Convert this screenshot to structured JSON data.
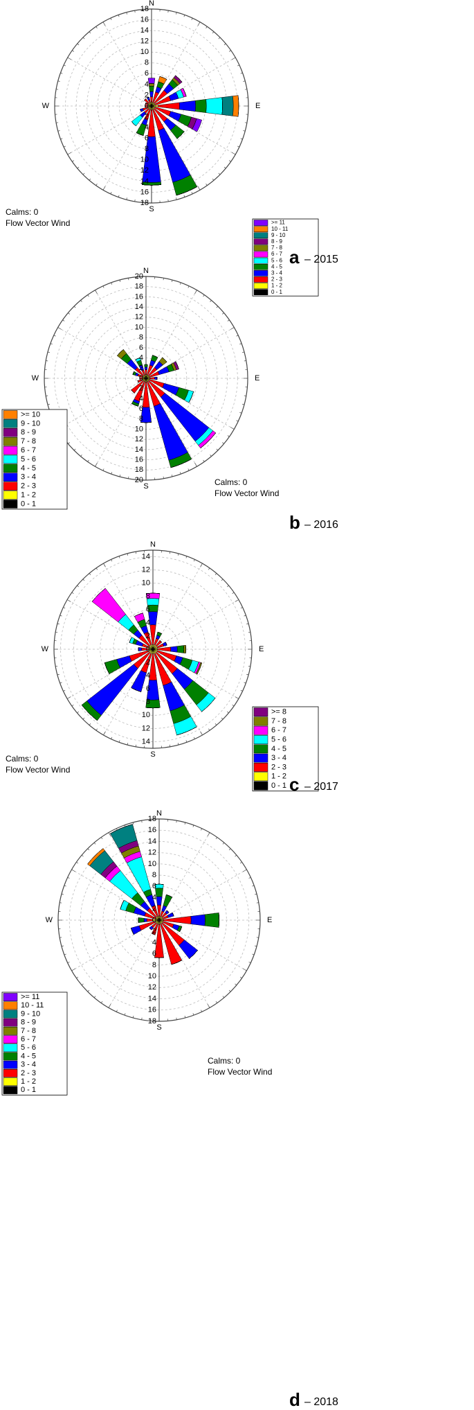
{
  "chart_data": [
    {
      "type": "windrose",
      "panel": "a",
      "subtitle": "– 2015",
      "annotations": [
        "Calms: 0",
        "Flow Vector Wind"
      ],
      "direction_labels": [
        "N",
        "E",
        "S",
        "W"
      ],
      "ylim": [
        0,
        18
      ],
      "yticks": [
        0,
        2,
        4,
        6,
        8,
        10,
        12,
        14,
        16,
        18
      ],
      "grid": true,
      "series": [
        {
          "name": "0 - 1",
          "color": "#000000",
          "values": [
            0.2,
            0.2,
            0.2,
            0.2,
            0.2,
            0.2,
            0.2,
            0.2,
            0.2,
            0.2,
            0.2,
            0.2,
            0.2,
            0.2,
            0.2,
            0.2
          ]
        },
        {
          "name": "1 - 2",
          "color": "#ffff00",
          "values": [
            0.5,
            0.5,
            0.5,
            0.5,
            1,
            0.5,
            0.5,
            0.5,
            0.5,
            0.5,
            0.5,
            0.5,
            0.5,
            0.5,
            0.5,
            0.5
          ]
        },
        {
          "name": "2 - 3",
          "color": "#ff0000",
          "values": [
            1,
            2,
            3,
            3,
            4,
            3,
            3,
            4,
            5,
            2,
            1,
            1,
            0.5,
            0.5,
            1,
            0.5
          ]
        },
        {
          "name": "3 - 4",
          "color": "#0000ff",
          "values": [
            1,
            1,
            1.5,
            1.5,
            3,
            2,
            2,
            10,
            8.5,
            1,
            1,
            0.5,
            0,
            0,
            0,
            0.5
          ]
        },
        {
          "name": "4 - 5",
          "color": "#008000",
          "values": [
            1,
            1,
            1,
            0,
            2,
            2,
            2,
            2.5,
            0.5,
            2,
            0,
            0,
            0,
            0,
            0,
            0
          ]
        },
        {
          "name": "5 - 6",
          "color": "#00ffff",
          "values": [
            0,
            0,
            0,
            1,
            3,
            0,
            0,
            0,
            0,
            0,
            2,
            0,
            0,
            0,
            0,
            0
          ]
        },
        {
          "name": "6 - 7",
          "color": "#ff00ff",
          "values": [
            0,
            0,
            0,
            0.5,
            0,
            0,
            0,
            0,
            0,
            0,
            0,
            0,
            0,
            0,
            0,
            0
          ]
        },
        {
          "name": "7 - 8",
          "color": "#808000",
          "values": [
            0.5,
            0,
            0.5,
            0,
            0,
            0,
            0,
            0,
            0,
            0,
            0,
            0,
            0,
            0,
            0,
            0
          ]
        },
        {
          "name": "8 - 9",
          "color": "#800080",
          "values": [
            0,
            0,
            0.5,
            0,
            0,
            1,
            0,
            0,
            0,
            0,
            0,
            0,
            0,
            0,
            0,
            0
          ]
        },
        {
          "name": "9 - 10",
          "color": "#008080",
          "values": [
            0,
            0,
            0,
            0,
            2,
            0,
            0,
            0,
            0,
            0,
            0,
            0,
            0,
            0,
            0,
            0
          ]
        },
        {
          "name": "10 - 11",
          "color": "#ff8000",
          "values": [
            0,
            1,
            0,
            0,
            1,
            0,
            0,
            0,
            0,
            0,
            0,
            0,
            0,
            0,
            0,
            0
          ]
        },
        {
          "name": ">= 11",
          "color": "#8000ff",
          "values": [
            1,
            0,
            0,
            0,
            0,
            1,
            0,
            0,
            0,
            0,
            0,
            0,
            0,
            0,
            0,
            0
          ]
        }
      ]
    },
    {
      "type": "windrose",
      "panel": "b",
      "subtitle": "– 2016",
      "annotations": [
        "Calms: 0",
        "Flow Vector Wind"
      ],
      "direction_labels": [
        "N",
        "E",
        "S",
        "W"
      ],
      "ylim": [
        0,
        20
      ],
      "yticks": [
        0,
        2,
        4,
        6,
        8,
        10,
        12,
        14,
        16,
        18,
        20
      ],
      "grid": true,
      "series": [
        {
          "name": "0 - 1",
          "color": "#000000",
          "values": [
            0.2,
            0.2,
            0.2,
            0.2,
            0.2,
            0.2,
            0.2,
            0.2,
            0.2,
            0.2,
            0.2,
            0.2,
            0.2,
            0.2,
            0.2,
            0.2
          ]
        },
        {
          "name": "1 - 2",
          "color": "#ffff00",
          "values": [
            0.5,
            0.5,
            0.5,
            0.5,
            0.5,
            0.5,
            0.5,
            0.5,
            0.5,
            0.5,
            0.5,
            0.5,
            0.5,
            0.5,
            0.5,
            0.5
          ]
        },
        {
          "name": "2 - 3",
          "color": "#ff0000",
          "values": [
            1,
            2,
            2,
            2,
            1,
            3,
            4,
            5,
            5,
            4,
            3,
            1,
            0.5,
            1,
            2,
            1
          ]
        },
        {
          "name": "3 - 4",
          "color": "#0000ff",
          "values": [
            0.5,
            1,
            1.5,
            2,
            0.5,
            3,
            11,
            11,
            3,
            0.5,
            0,
            0,
            0,
            0.5,
            2,
            1
          ]
        },
        {
          "name": "4 - 5",
          "color": "#008000",
          "values": [
            0.5,
            1,
            0,
            1,
            0,
            2,
            0,
            1.5,
            0,
            0.5,
            0,
            0,
            0,
            0.5,
            1.5,
            1
          ]
        },
        {
          "name": "5 - 6",
          "color": "#00ffff",
          "values": [
            0,
            0,
            0,
            0,
            0,
            1,
            1,
            0,
            0,
            0,
            0,
            0,
            0,
            0,
            0,
            0.5
          ]
        },
        {
          "name": "6 - 7",
          "color": "#ff00ff",
          "values": [
            0,
            0,
            0,
            0,
            0,
            0,
            0.7,
            0,
            0,
            0,
            0,
            0,
            0,
            0,
            0,
            0
          ]
        },
        {
          "name": "7 - 8",
          "color": "#808000",
          "values": [
            0,
            0,
            1,
            0.5,
            0,
            0,
            0,
            0,
            0,
            0,
            0,
            0,
            0,
            0,
            1,
            0
          ]
        },
        {
          "name": "8 - 9",
          "color": "#800080",
          "values": [
            0,
            0,
            0,
            0.5,
            0,
            0,
            0,
            0,
            0,
            0,
            0,
            0,
            0,
            0,
            0,
            0
          ]
        },
        {
          "name": "9 - 10",
          "color": "#008080",
          "values": [
            0,
            0,
            0,
            0,
            0,
            0,
            0,
            0,
            0,
            0,
            0,
            0,
            0,
            0,
            0,
            0
          ]
        },
        {
          "name": ">= 10",
          "color": "#ff8000",
          "values": [
            0,
            0,
            0,
            0,
            0,
            0,
            0,
            0,
            0,
            0,
            0,
            0,
            0,
            0,
            0,
            0
          ]
        }
      ]
    },
    {
      "type": "windrose",
      "panel": "c",
      "subtitle": "– 2017",
      "annotations": [
        "Calms: 0",
        "Flow Vector Wind"
      ],
      "direction_labels": [
        "N",
        "E",
        "S",
        "W"
      ],
      "ylim": [
        0,
        15
      ],
      "yticks": [
        0,
        2,
        4,
        6,
        8,
        10,
        12,
        14
      ],
      "grid": true,
      "series": [
        {
          "name": "0 - 1",
          "color": "#000000",
          "values": [
            0.2,
            0.2,
            0.2,
            0.2,
            0.2,
            0.2,
            0.2,
            0.2,
            0.2,
            0.2,
            0.2,
            0.2,
            0.2,
            0.2,
            0.2,
            0.2
          ]
        },
        {
          "name": "1 - 2",
          "color": "#ffff00",
          "values": [
            0.5,
            0.5,
            0.5,
            0.5,
            0.5,
            0.5,
            0.5,
            0.5,
            0.5,
            0.5,
            0.5,
            0.5,
            0.5,
            0.5,
            0.5,
            0.5
          ]
        },
        {
          "name": "2 - 3",
          "color": "#ff0000",
          "values": [
            3,
            1,
            1,
            1,
            2,
            3,
            4,
            5,
            4,
            3,
            3,
            3,
            1,
            1,
            2,
            2
          ]
        },
        {
          "name": "3 - 4",
          "color": "#0000ff",
          "values": [
            2,
            0.5,
            0,
            0.5,
            1,
            1,
            3,
            4,
            3,
            3,
            9,
            2,
            0.5,
            1,
            1,
            1
          ]
        },
        {
          "name": "4 - 5",
          "color": "#008000",
          "values": [
            1,
            0.5,
            0,
            0,
            1,
            1.5,
            3,
            2,
            1.2,
            0,
            1,
            1.9,
            0,
            0.5,
            1,
            1
          ]
        },
        {
          "name": "5 - 6",
          "color": "#00ffff",
          "values": [
            1,
            0,
            0,
            0,
            0,
            1,
            1.3,
            1.8,
            0,
            0,
            0,
            0,
            0,
            0.5,
            2,
            0
          ]
        },
        {
          "name": "6 - 7",
          "color": "#ff00ff",
          "values": [
            0.8,
            0,
            0,
            0,
            0,
            0.3,
            0,
            0,
            0,
            0,
            0,
            0,
            0,
            0,
            5,
            1
          ]
        },
        {
          "name": "7 - 8",
          "color": "#808000",
          "values": [
            0,
            0,
            0,
            0,
            0.3,
            0.2,
            0,
            0,
            0,
            0,
            0,
            0,
            0,
            0,
            0,
            0
          ]
        },
        {
          "name": ">= 8",
          "color": "#800080",
          "values": [
            0,
            0,
            0,
            0,
            0,
            0,
            0,
            0,
            0,
            0,
            0,
            0,
            0,
            0,
            0,
            0
          ]
        }
      ]
    },
    {
      "type": "windrose",
      "panel": "d",
      "subtitle": "– 2018",
      "annotations": [
        "Calms: 0",
        "Flow Vector Wind"
      ],
      "direction_labels": [
        "N",
        "E",
        "S",
        "W"
      ],
      "ylim": [
        0,
        18
      ],
      "yticks": [
        0,
        2,
        4,
        6,
        8,
        10,
        12,
        14,
        16,
        18
      ],
      "grid": true,
      "series": [
        {
          "name": "0 - 1",
          "color": "#000000",
          "values": [
            0.2,
            0.2,
            0.2,
            0.2,
            0.2,
            0.2,
            0.2,
            0.2,
            0.2,
            0.2,
            0.2,
            0.2,
            0.2,
            0.2,
            0.2,
            0.2
          ]
        },
        {
          "name": "1 - 2",
          "color": "#ffff00",
          "values": [
            0.5,
            0.5,
            0.5,
            0.5,
            0.5,
            0.5,
            0.5,
            0.5,
            0.5,
            0.5,
            0.5,
            0.5,
            1,
            0.5,
            0.5,
            0.5
          ]
        },
        {
          "name": "2 - 3",
          "color": "#ff0000",
          "values": [
            2,
            1,
            1,
            1,
            5,
            2,
            5,
            7.5,
            6,
            2,
            1,
            3,
            1,
            2,
            2,
            2
          ]
        },
        {
          "name": "3 - 4",
          "color": "#0000ff",
          "values": [
            1.5,
            1,
            0.5,
            1,
            2.5,
            1,
            3,
            0,
            0,
            0,
            0.5,
            1.5,
            0.5,
            2,
            1.5,
            2
          ]
        },
        {
          "name": "4 - 5",
          "color": "#008000",
          "values": [
            1.5,
            2,
            0,
            0,
            2.5,
            0.5,
            0,
            0,
            0,
            0,
            0,
            0,
            1,
            1.5,
            2,
            1
          ]
        },
        {
          "name": "5 - 6",
          "color": "#00ffff",
          "values": [
            0.7,
            0,
            0,
            0,
            0,
            0,
            0,
            0,
            0,
            0,
            0,
            0,
            0,
            1,
            5,
            6
          ]
        },
        {
          "name": "6 - 7",
          "color": "#ff00ff",
          "values": [
            0,
            0,
            0,
            0,
            0,
            0,
            0,
            0,
            0,
            0,
            0,
            0,
            0,
            0,
            1,
            1
          ]
        },
        {
          "name": "7 - 8",
          "color": "#808000",
          "values": [
            0,
            0,
            0,
            0,
            0,
            0,
            0,
            0,
            0,
            0,
            0,
            0,
            0,
            0,
            0,
            1
          ]
        },
        {
          "name": "8 - 9",
          "color": "#800080",
          "values": [
            0,
            0,
            0,
            0,
            0,
            0,
            0,
            0,
            0,
            0,
            0,
            0,
            0,
            0,
            1,
            1
          ]
        },
        {
          "name": "9 - 10",
          "color": "#008080",
          "values": [
            0,
            0,
            0,
            0,
            0,
            0,
            0,
            0,
            0,
            0,
            0,
            0,
            0,
            0,
            2.5,
            3
          ]
        },
        {
          "name": "10 - 11",
          "color": "#ff8000",
          "values": [
            0,
            0,
            0,
            0,
            0,
            0,
            0,
            0,
            0,
            0,
            0,
            0,
            0,
            0,
            0.5,
            0
          ]
        },
        {
          "name": ">= 11",
          "color": "#8000ff",
          "values": [
            0,
            0,
            0,
            0,
            0,
            0,
            0,
            0,
            0,
            0,
            0,
            0,
            0,
            0,
            0,
            0
          ]
        }
      ]
    }
  ]
}
